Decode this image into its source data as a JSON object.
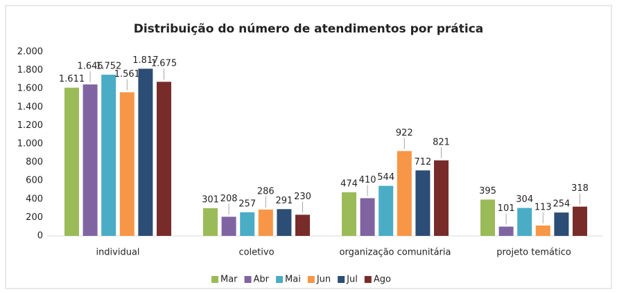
{
  "chart_data": {
    "type": "bar",
    "title": "Distribuição do número de atendimentos por prática",
    "categories": [
      "individual",
      "coletivo",
      "organização comunitária",
      "projeto temático"
    ],
    "series": [
      {
        "name": "Mar",
        "color": "#9bbb59",
        "values": [
          1611,
          301,
          474,
          395
        ],
        "value_labels": [
          "1.611",
          "301",
          "474",
          "395"
        ]
      },
      {
        "name": "Abr",
        "color": "#8064a2",
        "values": [
          1646,
          208,
          410,
          101
        ],
        "value_labels": [
          "1.646",
          "208",
          "410",
          "101"
        ]
      },
      {
        "name": "Mai",
        "color": "#4bacc6",
        "values": [
          1752,
          257,
          544,
          304
        ],
        "value_labels": [
          "1.752",
          "257",
          "544",
          "304"
        ]
      },
      {
        "name": "Jun",
        "color": "#f79646",
        "values": [
          1561,
          286,
          922,
          113
        ],
        "value_labels": [
          "1.561",
          "286",
          "922",
          "113"
        ]
      },
      {
        "name": "Jul",
        "color": "#2c4d75",
        "values": [
          1817,
          291,
          712,
          254
        ],
        "value_labels": [
          "1.817",
          "291",
          "712",
          "254"
        ]
      },
      {
        "name": "Ago",
        "color": "#772c2a",
        "values": [
          1675,
          230,
          821,
          318
        ],
        "value_labels": [
          "1.675",
          "230",
          "821",
          "318"
        ]
      }
    ],
    "ylim": [
      0,
      2000
    ],
    "yticks": [
      0,
      200,
      400,
      600,
      800,
      {
        "value": 1000,
        "label": "1.000"
      },
      {
        "value": 1200,
        "label": "1.200"
      },
      {
        "value": 1400,
        "label": "1.400"
      },
      {
        "value": 1600,
        "label": "1.600"
      },
      {
        "value": 1800,
        "label": "1.800"
      },
      {
        "value": 2000,
        "label": "2.000"
      }
    ],
    "grid": false,
    "legend": "bottom"
  }
}
